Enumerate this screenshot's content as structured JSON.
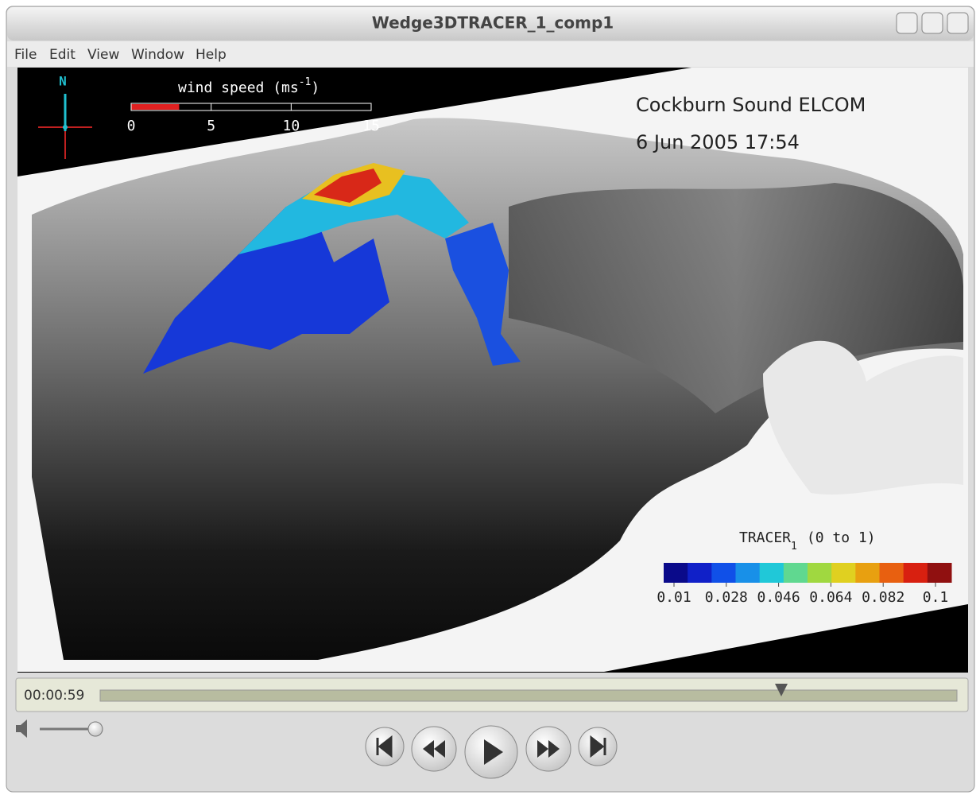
{
  "window": {
    "title": "Wedge3DTRACER_1_comp1",
    "menu": [
      "File",
      "Edit",
      "View",
      "Window",
      "Help"
    ]
  },
  "video": {
    "compass": "N",
    "wind": {
      "label": "wind speed (ms",
      "label_sup": "-1",
      "label_end": ")",
      "lim": [
        0,
        15
      ],
      "ticks": [
        0,
        5,
        10,
        15
      ],
      "value": 3,
      "color": "#e02020"
    },
    "title": "Cockburn Sound ELCOM",
    "date": "6 Jun 2005 17:54",
    "colorbar": {
      "label": "TRACER",
      "label_sub": "1",
      "label_range": "(0 to 1)",
      "lim": [
        0.01,
        0.1
      ],
      "ticks": [
        0.01,
        0.028,
        0.046,
        0.064,
        0.082,
        0.1
      ],
      "colors": [
        "#0a0a8a",
        "#1020c8",
        "#1050e8",
        "#1890e8",
        "#20c8d8",
        "#60d890",
        "#a0d840",
        "#e0d020",
        "#e8a010",
        "#e86010",
        "#d82010",
        "#901010"
      ]
    }
  },
  "player": {
    "time": "00:00:59"
  }
}
